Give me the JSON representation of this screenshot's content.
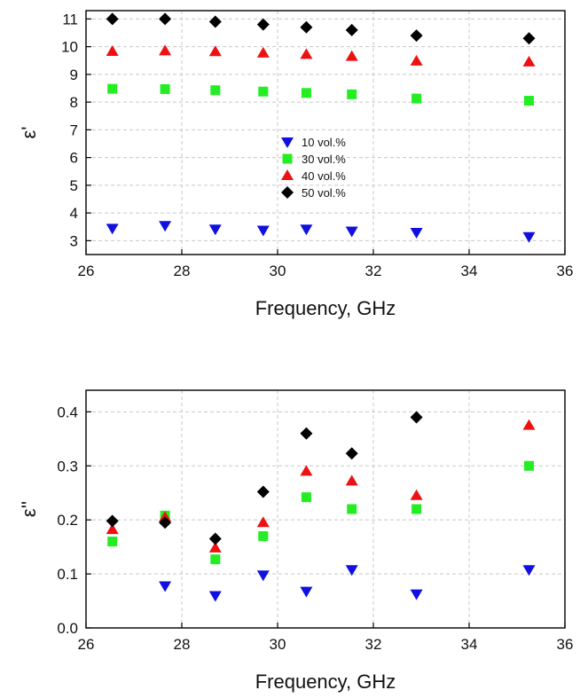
{
  "chart_data": [
    {
      "type": "scatter",
      "xlabel": "Frequency, GHz",
      "ylabel": "ε'",
      "xlim": [
        26,
        36
      ],
      "ylim": [
        2.5,
        11.3
      ],
      "xticks": [
        26,
        28,
        30,
        32,
        34,
        36
      ],
      "yticks": [
        3,
        4,
        5,
        6,
        7,
        8,
        9,
        10,
        11
      ],
      "grid": true,
      "legend": "center",
      "x": [
        26.55,
        27.65,
        28.7,
        29.7,
        30.6,
        31.55,
        32.9,
        35.25
      ],
      "series": [
        {
          "name": "10 vol.%",
          "marker": "triangle-down",
          "color": "#1010e0",
          "values": [
            3.45,
            3.55,
            3.42,
            3.38,
            3.42,
            3.35,
            3.3,
            3.15
          ]
        },
        {
          "name": "30 vol.%",
          "marker": "square",
          "color": "#22ee22",
          "values": [
            8.48,
            8.47,
            8.43,
            8.38,
            8.33,
            8.28,
            8.13,
            8.05
          ]
        },
        {
          "name": "40 vol.%",
          "marker": "triangle-up",
          "color": "#ee1111",
          "values": [
            9.83,
            9.85,
            9.82,
            9.77,
            9.72,
            9.65,
            9.48,
            9.45
          ]
        },
        {
          "name": "50 vol.%",
          "marker": "diamond",
          "color": "#000000",
          "values": [
            11.0,
            11.0,
            10.9,
            10.8,
            10.7,
            10.6,
            10.4,
            10.3
          ]
        }
      ]
    },
    {
      "type": "scatter",
      "xlabel": "Frequency, GHz",
      "ylabel": "ε''",
      "xlim": [
        26,
        36
      ],
      "ylim": [
        0.0,
        0.44
      ],
      "xticks": [
        26,
        28,
        30,
        32,
        34,
        36
      ],
      "yticks": [
        "0.0",
        "0.1",
        "0.2",
        "0.3",
        "0.4"
      ],
      "grid": true,
      "x": [
        26.55,
        27.65,
        28.7,
        29.7,
        30.6,
        31.55,
        32.9,
        35.25
      ],
      "series": [
        {
          "name": "10 vol.%",
          "marker": "triangle-down",
          "color": "#1010e0",
          "values": [
            null,
            0.078,
            0.06,
            0.098,
            0.068,
            0.108,
            0.063,
            0.108
          ]
        },
        {
          "name": "30 vol.%",
          "marker": "square",
          "color": "#22ee22",
          "values": [
            0.16,
            0.208,
            0.127,
            0.17,
            0.242,
            0.22,
            0.22,
            0.3
          ]
        },
        {
          "name": "40 vol.%",
          "marker": "triangle-up",
          "color": "#ee1111",
          "values": [
            0.182,
            0.205,
            0.148,
            0.195,
            0.29,
            0.272,
            0.245,
            0.375
          ]
        },
        {
          "name": "50 vol.%",
          "marker": "diamond",
          "color": "#000000",
          "values": [
            0.198,
            0.195,
            0.165,
            0.252,
            0.36,
            0.323,
            0.39,
            null
          ]
        }
      ]
    }
  ]
}
